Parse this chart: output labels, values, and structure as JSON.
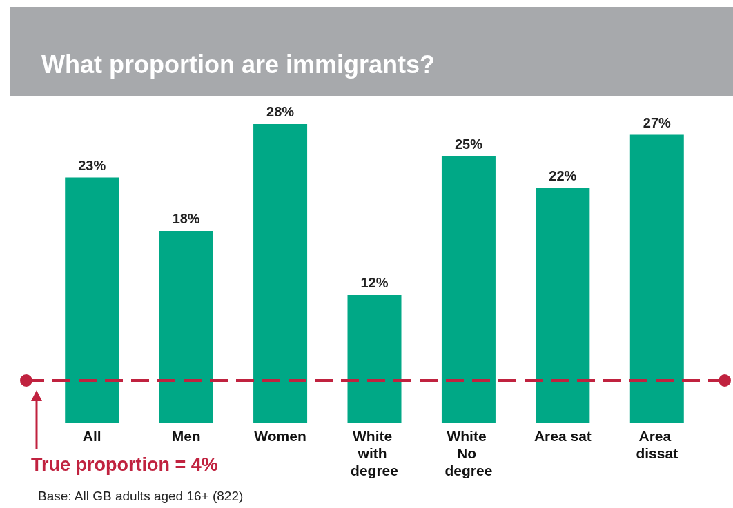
{
  "chart_data": {
    "type": "bar",
    "title": "What proportion are immigrants?",
    "categories": [
      "All",
      "Men",
      "Women",
      "White with degree",
      "White No degree",
      "Area sat",
      "Area dissat"
    ],
    "values": [
      23,
      18,
      28,
      12,
      25,
      22,
      27
    ],
    "color": "#00a886",
    "value_labels": [
      "23%",
      "18%",
      "28%",
      "12%",
      "25%",
      "22%",
      "27%"
    ],
    "tick_labels": "x",
    "ref_lines": [
      {
        "axis": "y",
        "value": 4,
        "label": "True proportion = 4%",
        "color": "#c0223f",
        "line_style": "dashed"
      }
    ],
    "annotations": [
      "Base: All GB adults aged 16+ (822)"
    ]
  }
}
